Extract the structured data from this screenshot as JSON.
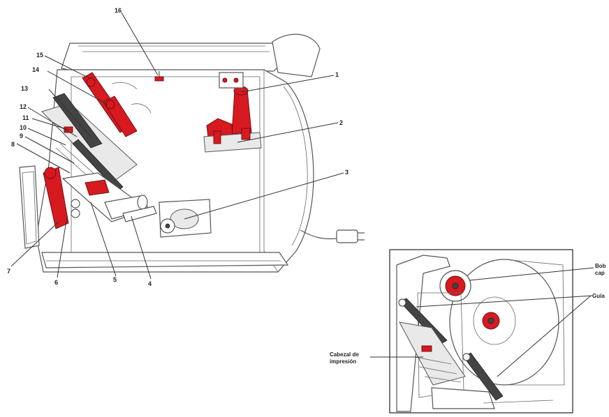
{
  "figure": {
    "colors": {
      "highlight": "#d71920",
      "line": "#333333",
      "paper": "#ffffff"
    },
    "callouts": {
      "n1": "1",
      "n2": "2",
      "n3": "3",
      "n4": "4",
      "n5": "5",
      "n6": "6",
      "n7": "7",
      "n8": "8",
      "n9": "9",
      "n10": "10",
      "n11": "11",
      "n12": "12",
      "n13": "13",
      "n14": "14",
      "n15": "15",
      "n16": "16"
    },
    "inset": {
      "label_spool_line1": "Bob",
      "label_spool_line2": "cap",
      "label_guide": "Guía",
      "label_printhead_line1": "Cabezal de",
      "label_printhead_line2": "impresión"
    }
  }
}
